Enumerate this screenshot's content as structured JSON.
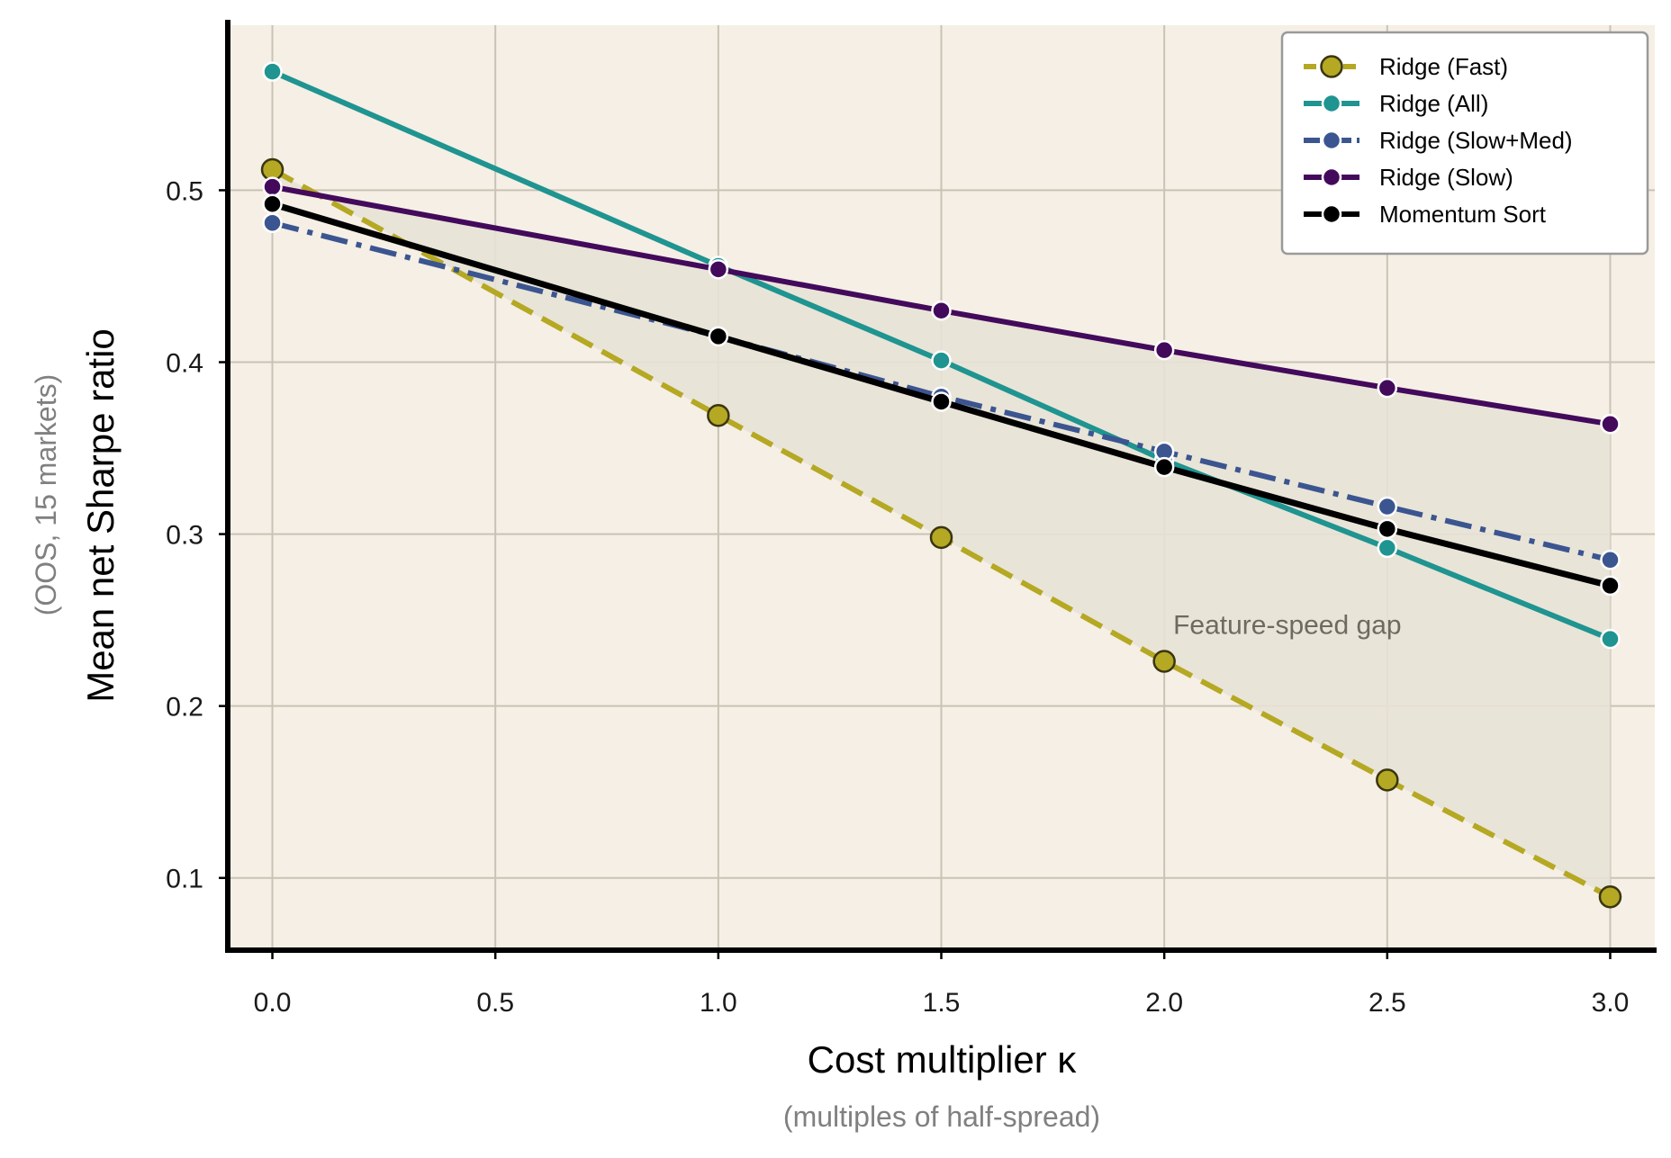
{
  "chart_data": {
    "type": "line",
    "x": [
      0.0,
      1.0,
      1.5,
      2.0,
      2.5,
      3.0
    ],
    "xlabel": "Cost multiplier κ",
    "xlabel_sub": "(multiples of half-spread)",
    "ylabel": "Mean net Sharpe ratio",
    "ylabel_sub": "(OOS, 15 markets)",
    "xlim": [
      -0.1,
      3.1
    ],
    "ylim": [
      0.058,
      0.596
    ],
    "xticks": [
      0.0,
      0.5,
      1.0,
      1.5,
      2.0,
      2.5,
      3.0
    ],
    "xtick_labels": [
      "0.0",
      "0.5",
      "1.0",
      "1.5",
      "2.0",
      "2.5",
      "3.0"
    ],
    "yticks": [
      0.1,
      0.2,
      0.3,
      0.4,
      0.5
    ],
    "ytick_labels": [
      "0.1",
      "0.2",
      "0.3",
      "0.4",
      "0.5"
    ],
    "grid": true,
    "legend_position": "top-right",
    "background_color": "#f5efe5",
    "shaded_band": {
      "between": [
        "Ridge (Fast)",
        "Ridge (Slow)"
      ],
      "color": "#e8e2d6"
    },
    "annotation": {
      "text": "Feature-speed gap",
      "x": 2.02,
      "y": 0.242
    },
    "series": [
      {
        "name": "Ridge (Fast)",
        "values": [
          0.512,
          0.369,
          0.298,
          0.226,
          0.157,
          0.089
        ],
        "color": "#b5a823",
        "marker_edge": "#3a3510",
        "line_style": "dashed",
        "marker_size": "large"
      },
      {
        "name": "Ridge (All)",
        "values": [
          0.569,
          0.456,
          0.401,
          0.343,
          0.292,
          0.239
        ],
        "color": "#1f9490",
        "marker_edge": "#ffffff",
        "line_style": "solid",
        "marker_size": "normal"
      },
      {
        "name": "Ridge (Slow+Med)",
        "values": [
          0.481,
          0.415,
          0.38,
          0.348,
          0.316,
          0.285
        ],
        "color": "#3b5590",
        "marker_edge": "#ffffff",
        "line_style": "dashdot",
        "marker_size": "normal"
      },
      {
        "name": "Ridge (Slow)",
        "values": [
          0.502,
          0.454,
          0.43,
          0.407,
          0.385,
          0.364
        ],
        "color": "#430a5c",
        "marker_edge": "#ffffff",
        "line_style": "solid",
        "marker_size": "normal"
      },
      {
        "name": "Momentum Sort",
        "values": [
          0.492,
          0.415,
          0.377,
          0.339,
          0.303,
          0.27
        ],
        "color": "#000000",
        "marker_edge": "#ffffff",
        "line_style": "solid",
        "marker_size": "normal"
      }
    ]
  }
}
